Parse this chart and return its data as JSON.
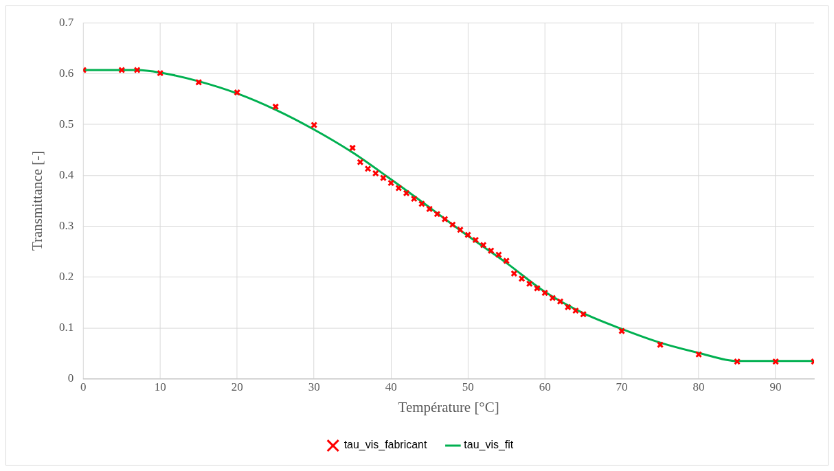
{
  "chart_data": {
    "type": "scatter",
    "xlabel": "Température [°C]",
    "ylabel": "Transmittance [-]",
    "xlim": [
      0,
      95
    ],
    "xticks": [
      0,
      10,
      20,
      30,
      40,
      50,
      60,
      70,
      80,
      90
    ],
    "ylim": [
      0,
      0.7
    ],
    "yticks": [
      0,
      0.1,
      0.2,
      0.3,
      0.4,
      0.5,
      0.6,
      0.7
    ],
    "grid": true,
    "legend": "bottom",
    "series": [
      {
        "name": "tau_vis_fabricant",
        "type": "scatter",
        "marker": "cross",
        "color": "#ff0000",
        "x": [
          0,
          5,
          7,
          10,
          15,
          20,
          25,
          30,
          35,
          36,
          37,
          38,
          39,
          40,
          41,
          42,
          43,
          44,
          45,
          46,
          47,
          48,
          49,
          50,
          51,
          52,
          53,
          54,
          55,
          56,
          57,
          58,
          59,
          60,
          61,
          62,
          63,
          64,
          65,
          70,
          75,
          80,
          85,
          90,
          95
        ],
        "values": [
          0.607,
          0.607,
          0.607,
          0.601,
          0.583,
          0.563,
          0.535,
          0.499,
          0.454,
          0.426,
          0.413,
          0.404,
          0.395,
          0.385,
          0.375,
          0.365,
          0.354,
          0.344,
          0.334,
          0.324,
          0.314,
          0.303,
          0.293,
          0.283,
          0.273,
          0.263,
          0.252,
          0.244,
          0.232,
          0.207,
          0.197,
          0.187,
          0.178,
          0.169,
          0.159,
          0.152,
          0.141,
          0.134,
          0.127,
          0.094,
          0.067,
          0.048,
          0.034,
          0.034,
          0.034
        ]
      },
      {
        "name": "tau_vis_fit",
        "type": "line",
        "marker": "none",
        "line_style": "solid",
        "color": "#00b050",
        "x": [
          0,
          5,
          7,
          10,
          15,
          20,
          25,
          30,
          35,
          40,
          45,
          50,
          55,
          60,
          65,
          70,
          75,
          80,
          85,
          90,
          95
        ],
        "values": [
          0.607,
          0.607,
          0.607,
          0.602,
          0.585,
          0.561,
          0.529,
          0.49,
          0.445,
          0.392,
          0.337,
          0.281,
          0.228,
          0.171,
          0.129,
          0.098,
          0.071,
          0.051,
          0.035,
          0.035,
          0.035
        ]
      }
    ]
  }
}
